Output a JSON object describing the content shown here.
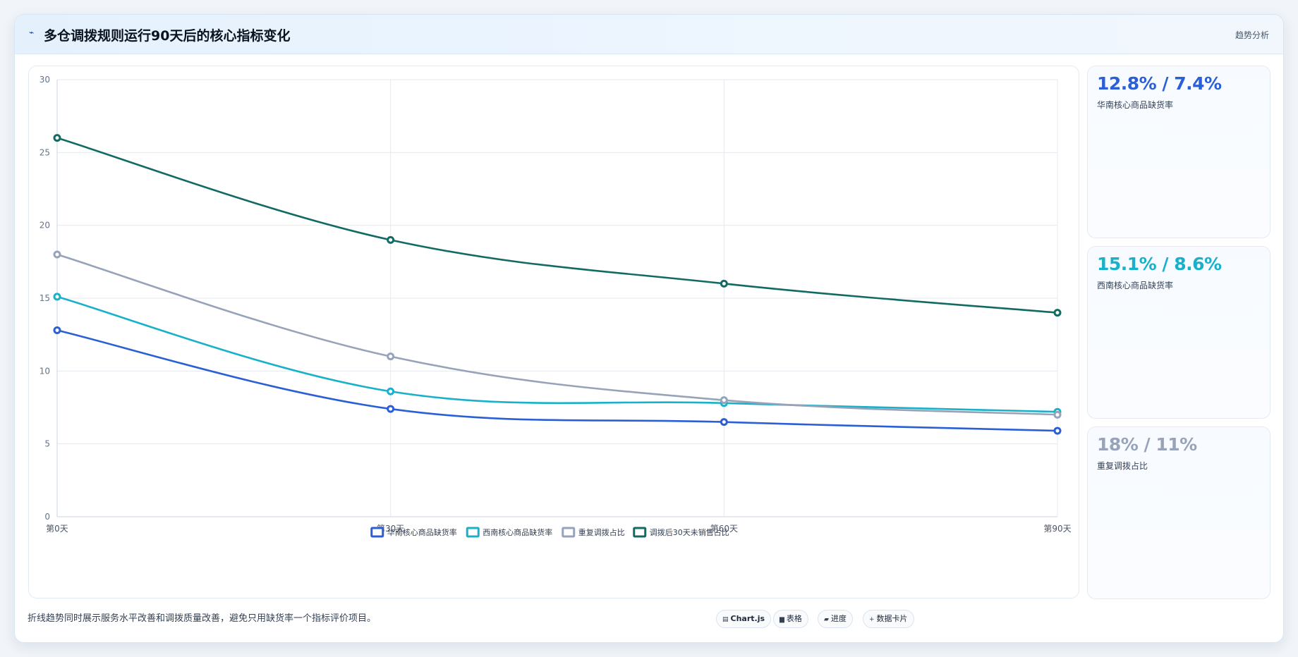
{
  "header": {
    "icon": "telescope-icon",
    "title": "多仓调拨规则运行90天后的核心指标变化",
    "tag": "趋势分析"
  },
  "kpis": [
    {
      "value": "12.8% / 7.4%",
      "label": "华南核心商品缺货率",
      "color": "#2b5fd6"
    },
    {
      "value": "15.1% / 8.6%",
      "label": "西南核心商品缺货率",
      "color": "#19b1c9"
    },
    {
      "value": "18% / 11%",
      "label": "重复调拨占比",
      "color": "#97a3b8"
    }
  ],
  "footnote": "折线趋势同时展示服务水平改善和调拨质量改善，避免只用缺货率一个指标评价项目。",
  "pills": [
    {
      "icon": "chart-icon",
      "label": "Chart.js"
    },
    {
      "icon": "table-icon",
      "label": "表格"
    },
    {
      "icon": "progress-icon",
      "label": "进度"
    },
    {
      "icon": "card-icon",
      "label": "数据卡片"
    }
  ],
  "chart_data": {
    "type": "line",
    "categories": [
      "第0天",
      "第30天",
      "第60天",
      "第90天"
    ],
    "ylim": [
      0,
      30
    ],
    "yticks": [
      0,
      5,
      10,
      15,
      20,
      25,
      30
    ],
    "grid": true,
    "legend_position": "bottom",
    "series": [
      {
        "name": "华南核心商品缺货率",
        "color": "#2b5fd6",
        "values": [
          12.8,
          7.4,
          6.5,
          5.9
        ]
      },
      {
        "name": "西南核心商品缺货率",
        "color": "#19b1c9",
        "values": [
          15.1,
          8.6,
          7.8,
          7.2
        ]
      },
      {
        "name": "重复调拨占比",
        "color": "#97a3b8",
        "values": [
          18,
          11,
          8,
          7
        ]
      },
      {
        "name": "调拨后30天未销售占比",
        "color": "#126b62",
        "values": [
          26,
          19,
          16,
          14
        ]
      }
    ]
  }
}
